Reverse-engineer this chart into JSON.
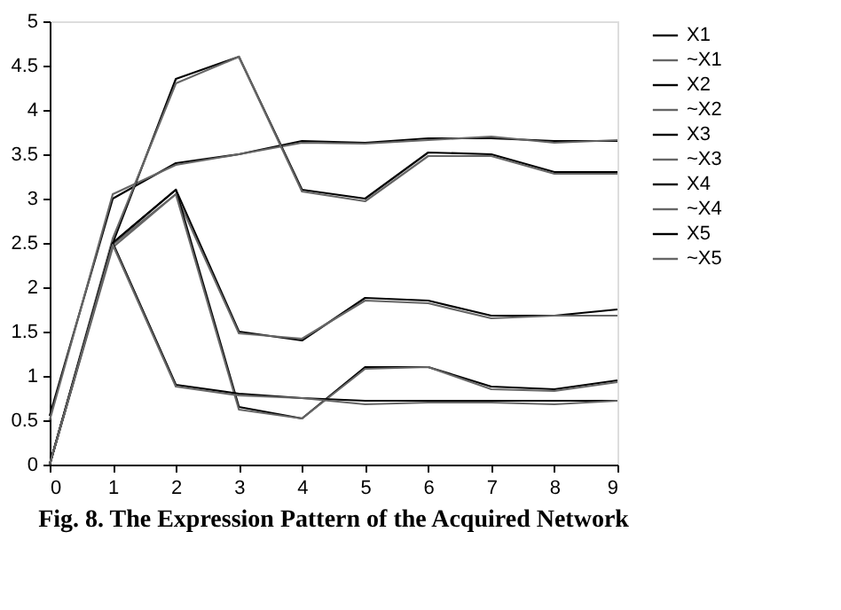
{
  "chart_data": {
    "type": "line",
    "title": "Fig. 8.    The Expression Pattern of the Acquired Network",
    "x": [
      0,
      1,
      2,
      3,
      4,
      5,
      6,
      7,
      8,
      9
    ],
    "series": [
      {
        "name": "X1",
        "color": "#000000",
        "values": [
          0.55,
          3.0,
          3.4,
          3.5,
          3.65,
          3.63,
          3.68,
          3.68,
          3.65,
          3.65
        ]
      },
      {
        "name": "~X1",
        "color": "#666666",
        "values": [
          0.5,
          3.05,
          3.38,
          3.5,
          3.63,
          3.62,
          3.66,
          3.7,
          3.63,
          3.66
        ]
      },
      {
        "name": "X2",
        "color": "#000000",
        "values": [
          0,
          2.5,
          4.35,
          4.6,
          3.1,
          3.0,
          3.52,
          3.5,
          3.3,
          3.3
        ]
      },
      {
        "name": "~X2",
        "color": "#666666",
        "values": [
          0,
          2.55,
          4.3,
          4.6,
          3.08,
          2.97,
          3.48,
          3.48,
          3.28,
          3.28
        ]
      },
      {
        "name": "X3",
        "color": "#000000",
        "values": [
          0,
          2.5,
          3.1,
          1.5,
          1.4,
          1.88,
          1.85,
          1.68,
          1.68,
          1.75
        ]
      },
      {
        "name": "~X3",
        "color": "#666666",
        "values": [
          0,
          2.48,
          3.05,
          1.48,
          1.42,
          1.85,
          1.82,
          1.65,
          1.68,
          1.68
        ]
      },
      {
        "name": "X4",
        "color": "#000000",
        "values": [
          0,
          2.5,
          3.1,
          0.65,
          0.52,
          1.1,
          1.1,
          0.88,
          0.85,
          0.95
        ]
      },
      {
        "name": "~X4",
        "color": "#666666",
        "values": [
          0,
          2.45,
          3.05,
          0.62,
          0.52,
          1.08,
          1.1,
          0.85,
          0.83,
          0.93
        ]
      },
      {
        "name": "X5",
        "color": "#000000",
        "values": [
          0,
          2.5,
          0.9,
          0.8,
          0.75,
          0.72,
          0.72,
          0.72,
          0.72,
          0.72
        ]
      },
      {
        "name": "~X5",
        "color": "#666666",
        "values": [
          0,
          2.48,
          0.88,
          0.78,
          0.75,
          0.68,
          0.7,
          0.7,
          0.68,
          0.72
        ]
      }
    ],
    "xlim": [
      0,
      9
    ],
    "xticks": [
      0,
      1,
      2,
      3,
      4,
      5,
      6,
      7,
      8,
      9
    ],
    "ylim": [
      0,
      5
    ],
    "yticks": [
      0,
      0.5,
      1,
      1.5,
      2,
      2.5,
      3,
      3.5,
      4,
      4.5,
      5
    ],
    "grid": false,
    "legend": "top right",
    "marker": "none",
    "line_style": "solid"
  }
}
